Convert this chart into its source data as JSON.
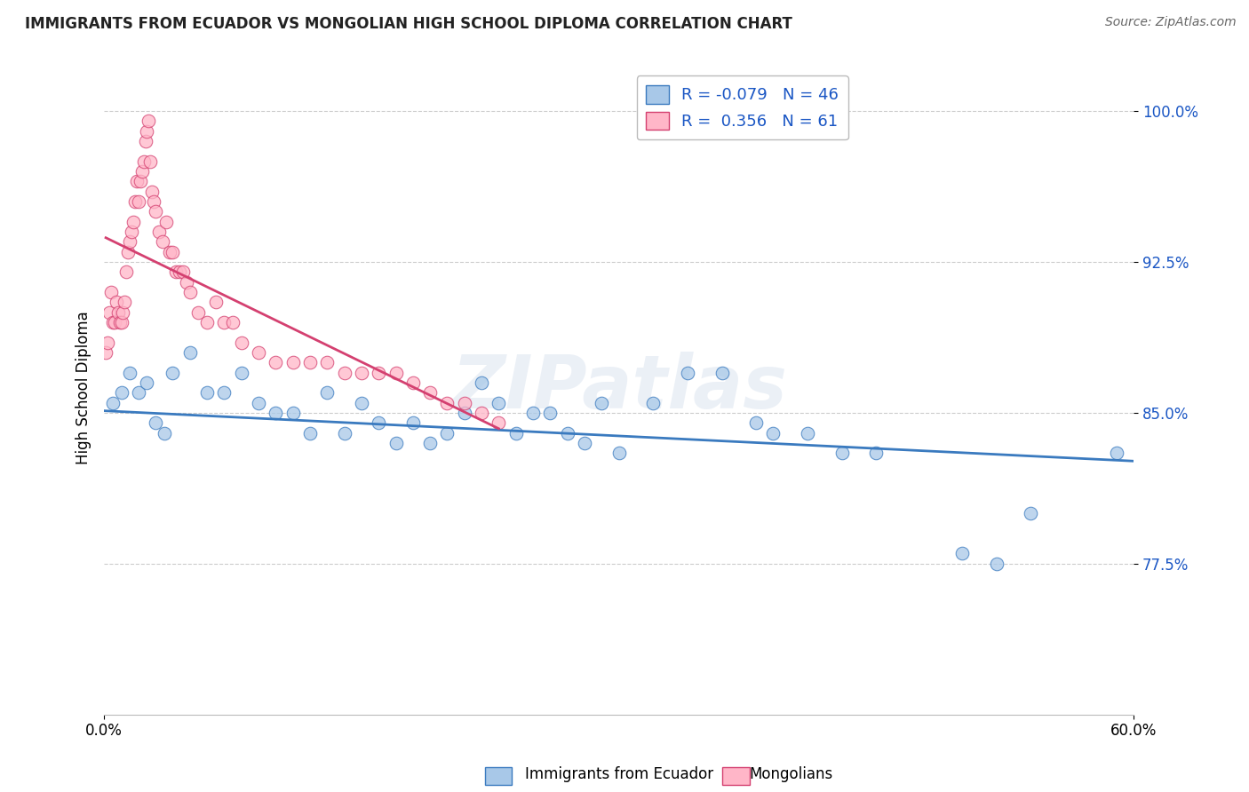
{
  "title": "IMMIGRANTS FROM ECUADOR VS MONGOLIAN HIGH SCHOOL DIPLOMA CORRELATION CHART",
  "source": "Source: ZipAtlas.com",
  "ylabel": "High School Diploma",
  "legend_labels": [
    "Immigrants from Ecuador",
    "Mongolians"
  ],
  "legend_r": [
    -0.079,
    0.356
  ],
  "legend_n": [
    46,
    61
  ],
  "blue_color": "#a8c8e8",
  "pink_color": "#ffb6c8",
  "blue_line_color": "#3a7abf",
  "pink_line_color": "#d44070",
  "title_color": "#222222",
  "source_color": "#666666",
  "r_color": "#1a56c4",
  "watermark": "ZIPatlas",
  "xmin": 0.0,
  "xmax": 0.6,
  "ymin": 0.7,
  "ymax": 1.025,
  "yticks": [
    0.775,
    0.85,
    0.925,
    1.0
  ],
  "ytick_labels": [
    "77.5%",
    "85.0%",
    "92.5%",
    "100.0%"
  ],
  "blue_scatter_x": [
    0.005,
    0.01,
    0.015,
    0.02,
    0.025,
    0.03,
    0.035,
    0.04,
    0.05,
    0.06,
    0.07,
    0.08,
    0.09,
    0.1,
    0.11,
    0.12,
    0.13,
    0.14,
    0.15,
    0.16,
    0.17,
    0.18,
    0.19,
    0.2,
    0.21,
    0.22,
    0.23,
    0.24,
    0.25,
    0.26,
    0.27,
    0.28,
    0.29,
    0.3,
    0.32,
    0.34,
    0.36,
    0.38,
    0.39,
    0.41,
    0.43,
    0.45,
    0.5,
    0.52,
    0.54,
    0.59
  ],
  "blue_scatter_y": [
    0.855,
    0.86,
    0.87,
    0.86,
    0.865,
    0.845,
    0.84,
    0.87,
    0.88,
    0.86,
    0.86,
    0.87,
    0.855,
    0.85,
    0.85,
    0.84,
    0.86,
    0.84,
    0.855,
    0.845,
    0.835,
    0.845,
    0.835,
    0.84,
    0.85,
    0.865,
    0.855,
    0.84,
    0.85,
    0.85,
    0.84,
    0.835,
    0.855,
    0.83,
    0.855,
    0.87,
    0.87,
    0.845,
    0.84,
    0.84,
    0.83,
    0.83,
    0.78,
    0.775,
    0.8,
    0.83
  ],
  "pink_scatter_x": [
    0.001,
    0.002,
    0.003,
    0.004,
    0.005,
    0.006,
    0.007,
    0.008,
    0.009,
    0.01,
    0.011,
    0.012,
    0.013,
    0.014,
    0.015,
    0.016,
    0.017,
    0.018,
    0.019,
    0.02,
    0.021,
    0.022,
    0.023,
    0.024,
    0.025,
    0.026,
    0.027,
    0.028,
    0.029,
    0.03,
    0.032,
    0.034,
    0.036,
    0.038,
    0.04,
    0.042,
    0.044,
    0.046,
    0.048,
    0.05,
    0.055,
    0.06,
    0.065,
    0.07,
    0.075,
    0.08,
    0.09,
    0.1,
    0.11,
    0.12,
    0.13,
    0.14,
    0.15,
    0.16,
    0.17,
    0.18,
    0.19,
    0.2,
    0.21,
    0.22,
    0.23
  ],
  "pink_scatter_y": [
    0.88,
    0.885,
    0.9,
    0.91,
    0.895,
    0.895,
    0.905,
    0.9,
    0.895,
    0.895,
    0.9,
    0.905,
    0.92,
    0.93,
    0.935,
    0.94,
    0.945,
    0.955,
    0.965,
    0.955,
    0.965,
    0.97,
    0.975,
    0.985,
    0.99,
    0.995,
    0.975,
    0.96,
    0.955,
    0.95,
    0.94,
    0.935,
    0.945,
    0.93,
    0.93,
    0.92,
    0.92,
    0.92,
    0.915,
    0.91,
    0.9,
    0.895,
    0.905,
    0.895,
    0.895,
    0.885,
    0.88,
    0.875,
    0.875,
    0.875,
    0.875,
    0.87,
    0.87,
    0.87,
    0.87,
    0.865,
    0.86,
    0.855,
    0.855,
    0.85,
    0.845
  ],
  "background_color": "#ffffff",
  "grid_color": "#cccccc",
  "grid_style": "--",
  "blue_trend_x": [
    0.0,
    0.6
  ],
  "blue_trend_y": [
    0.851,
    0.826
  ],
  "pink_trend_x_start": 0.001,
  "pink_trend_x_end": 0.23
}
